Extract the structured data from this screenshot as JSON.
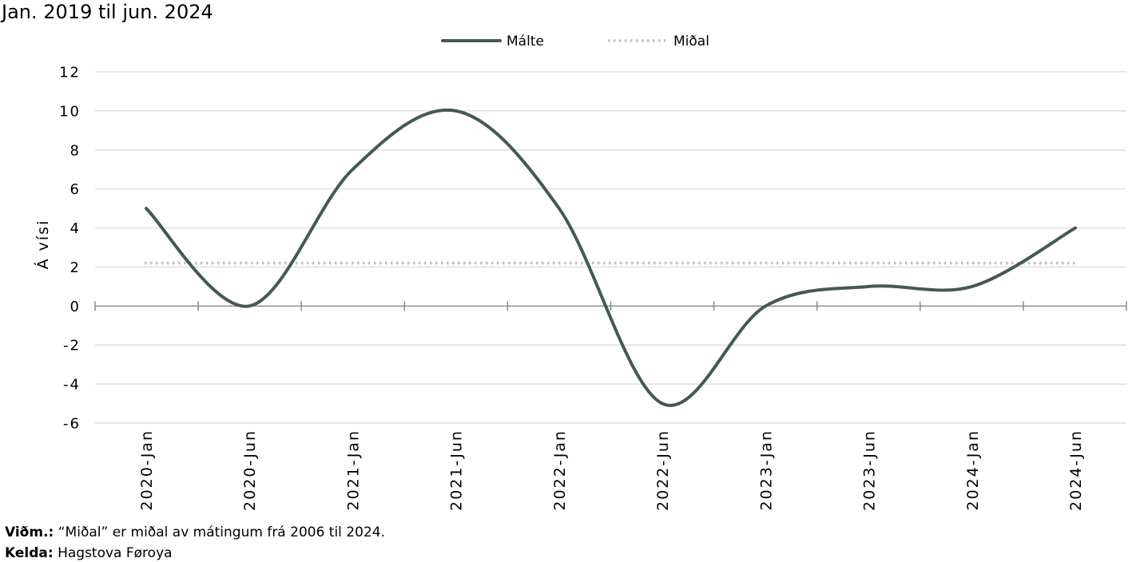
{
  "chart_data": {
    "type": "line",
    "title": "Jan. 2019 til jun. 2024",
    "ylabel": "Á vísi",
    "xlabel": "",
    "ylim": [
      -6,
      12
    ],
    "yticks": [
      12,
      10,
      8,
      6,
      4,
      2,
      0,
      -2,
      -4,
      -6
    ],
    "ytick_labels": [
      "12",
      "10",
      "8",
      "6",
      "4",
      "2",
      "0",
      "-2",
      "-4",
      "-6"
    ],
    "categories": [
      "2020-Jan",
      "2020-Jun",
      "2021-Jan",
      "2021-Jun",
      "2022-Jan",
      "2022-Jun",
      "2023-Jan",
      "2023-Jun",
      "2024-Jan",
      "2024-Jun"
    ],
    "grid": true,
    "legend_position": "top-center",
    "series": [
      {
        "name": "Málte",
        "color": "#435a51",
        "style": "solid",
        "values": [
          5,
          0,
          7,
          10,
          5,
          -5,
          0,
          1,
          1,
          4
        ]
      },
      {
        "name": "Miðal",
        "color": "#bfbfbf",
        "style": "dotted",
        "values": [
          2.2,
          2.2,
          2.2,
          2.2,
          2.2,
          2.2,
          2.2,
          2.2,
          2.2,
          2.2
        ]
      }
    ]
  },
  "notes": {
    "note_label": "Viðm.:",
    "note_text": " “Miðal” er miðal av mátingum frá 2006 til 2024.",
    "source_label": "Kelda:",
    "source_text": " Hagstova Føroya"
  }
}
